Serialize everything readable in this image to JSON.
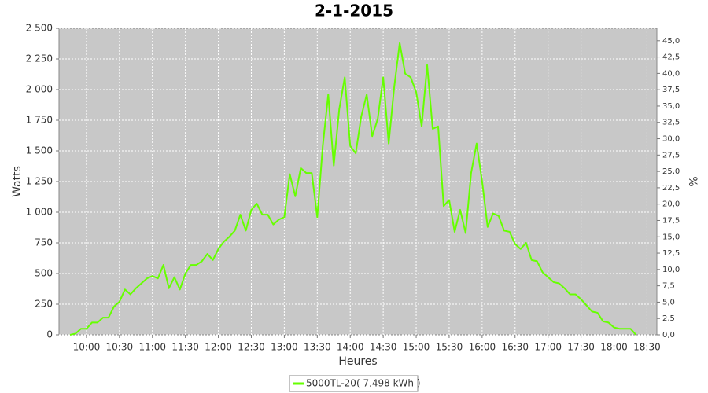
{
  "chart_data": {
    "type": "line",
    "title": "2-1-2015",
    "xlabel": "Heures",
    "ylabel": "Watts",
    "y2label": "%",
    "x": [
      585,
      590,
      595,
      600,
      605,
      610,
      615,
      620,
      625,
      630,
      635,
      640,
      645,
      650,
      655,
      660,
      665,
      670,
      675,
      680,
      685,
      690,
      695,
      700,
      705,
      710,
      715,
      720,
      725,
      730,
      735,
      740,
      745,
      750,
      755,
      760,
      765,
      770,
      775,
      780,
      785,
      790,
      795,
      800,
      805,
      810,
      815,
      820,
      825,
      830,
      835,
      840,
      845,
      850,
      855,
      860,
      865,
      870,
      875,
      880,
      885,
      890,
      895,
      900,
      905,
      910,
      915,
      920,
      925,
      930,
      935,
      940,
      945,
      950,
      955,
      960,
      965,
      970,
      975,
      980,
      985,
      990,
      995,
      1000,
      1005,
      1010,
      1015,
      1020,
      1025,
      1030,
      1035,
      1040,
      1045,
      1050,
      1055,
      1060,
      1065,
      1070,
      1075,
      1080,
      1085,
      1090,
      1095,
      1100
    ],
    "series": [
      {
        "name": "5000TL-20( 7,498 kWh )",
        "color": "#66ff00",
        "values": [
          0,
          10,
          50,
          50,
          100,
          100,
          140,
          140,
          230,
          270,
          370,
          330,
          380,
          420,
          460,
          480,
          460,
          570,
          380,
          470,
          370,
          500,
          570,
          570,
          600,
          660,
          610,
          700,
          760,
          800,
          850,
          980,
          850,
          1020,
          1070,
          980,
          980,
          900,
          940,
          960,
          1310,
          1130,
          1360,
          1320,
          1320,
          960,
          1540,
          1960,
          1380,
          1840,
          2100,
          1540,
          1480,
          1780,
          1960,
          1620,
          1760,
          2100,
          1560,
          2020,
          2380,
          2130,
          2100,
          1980,
          1700,
          2200,
          1680,
          1700,
          1050,
          1100,
          840,
          1020,
          830,
          1320,
          1560,
          1250,
          880,
          990,
          970,
          850,
          840,
          740,
          700,
          750,
          610,
          600,
          510,
          470,
          430,
          420,
          380,
          330,
          330,
          290,
          240,
          190,
          180,
          110,
          100,
          60,
          50,
          50,
          50,
          0
        ]
      }
    ],
    "xlim": [
      575,
      1119
    ],
    "xticks": [
      {
        "value": 600,
        "label": "10:00"
      },
      {
        "value": 630,
        "label": "10:30"
      },
      {
        "value": 660,
        "label": "11:00"
      },
      {
        "value": 690,
        "label": "11:30"
      },
      {
        "value": 720,
        "label": "12:00"
      },
      {
        "value": 750,
        "label": "12:30"
      },
      {
        "value": 780,
        "label": "13:00"
      },
      {
        "value": 810,
        "label": "13:30"
      },
      {
        "value": 840,
        "label": "14:00"
      },
      {
        "value": 870,
        "label": "14:30"
      },
      {
        "value": 900,
        "label": "15:00"
      },
      {
        "value": 930,
        "label": "15:30"
      },
      {
        "value": 960,
        "label": "16:00"
      },
      {
        "value": 990,
        "label": "16:30"
      },
      {
        "value": 1020,
        "label": "17:00"
      },
      {
        "value": 1050,
        "label": "17:30"
      },
      {
        "value": 1080,
        "label": "18:00"
      },
      {
        "value": 1110,
        "label": "18:30"
      }
    ],
    "ylim": [
      0,
      2500
    ],
    "yticks": [
      0,
      250,
      500,
      750,
      {
        "value": 1000,
        "label": "1 000"
      },
      {
        "value": 1250,
        "label": "1 250"
      },
      {
        "value": 1500,
        "label": "1 500"
      },
      {
        "value": 1750,
        "label": "1 750"
      },
      {
        "value": 2000,
        "label": "2 000"
      },
      {
        "value": 2250,
        "label": "2 250"
      },
      {
        "value": 2500,
        "label": "2 500"
      }
    ],
    "y2lim": [
      0,
      46.9
    ],
    "y2ticks": [
      {
        "value": 0,
        "label": "0,0"
      },
      {
        "value": 2.5,
        "label": "2,5"
      },
      {
        "value": 5,
        "label": "5,0"
      },
      {
        "value": 7.5,
        "label": "7,5"
      },
      {
        "value": 10,
        "label": "10,0"
      },
      {
        "value": 12.5,
        "label": "12,5"
      },
      {
        "value": 15,
        "label": "15,0"
      },
      {
        "value": 17.5,
        "label": "17,5"
      },
      {
        "value": 20,
        "label": "20,0"
      },
      {
        "value": 22.5,
        "label": "22,5"
      },
      {
        "value": 25,
        "label": "25,0"
      },
      {
        "value": 27.5,
        "label": "27,5"
      },
      {
        "value": 30,
        "label": "30,0"
      },
      {
        "value": 32.5,
        "label": "32,5"
      },
      {
        "value": 35,
        "label": "35,0"
      },
      {
        "value": 37.5,
        "label": "37,5"
      },
      {
        "value": 40,
        "label": "40,0"
      },
      {
        "value": 42.5,
        "label": "42,5"
      },
      {
        "value": 45,
        "label": "45,0"
      }
    ],
    "grid": true,
    "background": "#c8c8c8"
  }
}
